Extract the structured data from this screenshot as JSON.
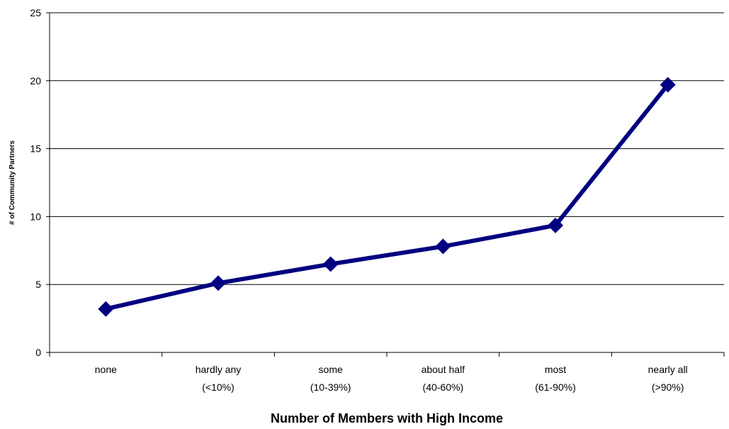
{
  "chart_data": {
    "type": "line",
    "categories": [
      [
        "none",
        ""
      ],
      [
        "hardly any",
        "(<10%)"
      ],
      [
        "some",
        "(10-39%)"
      ],
      [
        "about half",
        "(40-60%)"
      ],
      [
        "most",
        "(61-90%)"
      ],
      [
        "nearly all",
        "(>90%)"
      ]
    ],
    "series": [
      {
        "values": [
          3.2,
          5.1,
          6.5,
          7.8,
          9.35,
          19.7
        ]
      }
    ],
    "title": "",
    "xlabel": "Number of Members with High Income",
    "ylabel": "# of Community Partners",
    "ylim": [
      0,
      25
    ],
    "yticks": [
      0,
      5,
      10,
      15,
      20,
      25
    ],
    "grid": true,
    "legend": "none",
    "colors": {
      "line": "#000080",
      "grid": "#000000",
      "axis": "#000000"
    }
  }
}
